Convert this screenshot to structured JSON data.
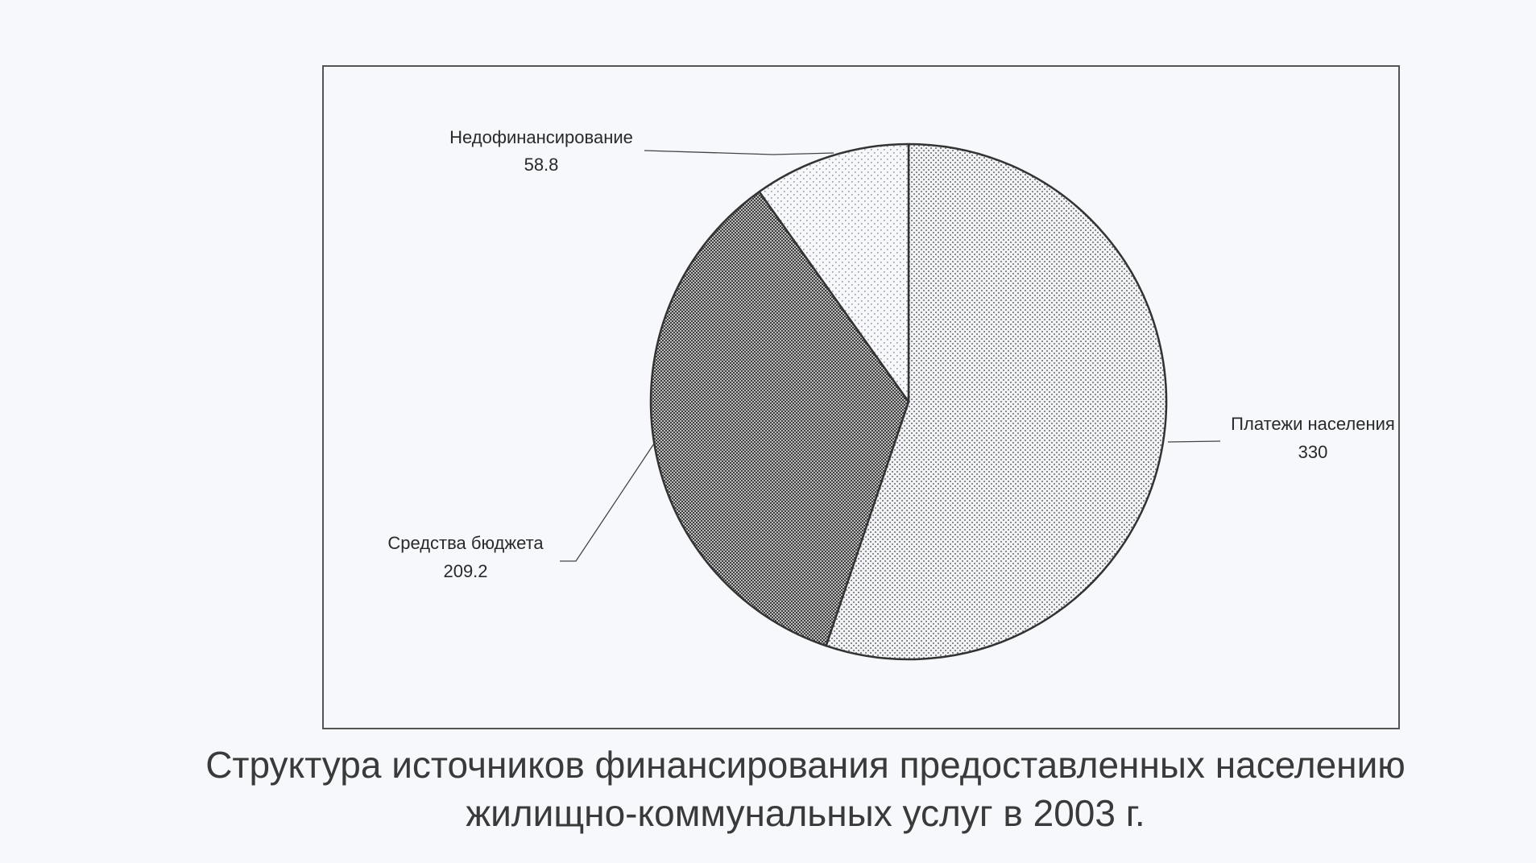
{
  "chart_data": {
    "type": "pie",
    "categories": [
      "Платежи населения",
      "Средства бюджета",
      "Недофинансирование"
    ],
    "values": [
      330,
      209.2,
      58.8
    ],
    "title": "",
    "legend": "none",
    "data_labels": [
      "330",
      "209.2",
      "58.8"
    ],
    "fill_patterns": [
      "fine-dots",
      "dense-checker",
      "sparse-dots"
    ]
  },
  "caption": {
    "line1": "Структура источников финансирования предоставленных населению",
    "line2": "жилищно-коммунальных услуг в 2003 г."
  },
  "colors": {
    "background": "#f6f8fc",
    "stroke": "#333333"
  }
}
